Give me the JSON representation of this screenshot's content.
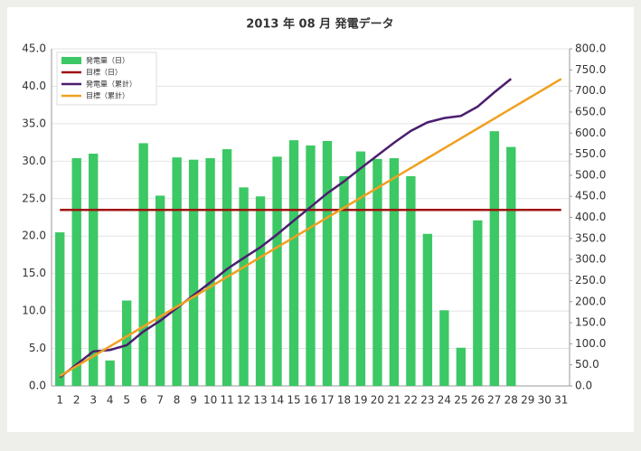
{
  "chart_data": {
    "type": "bar",
    "title": "2013 年 08 月 発電データ",
    "categories": [
      "1",
      "2",
      "3",
      "4",
      "5",
      "6",
      "7",
      "8",
      "9",
      "10",
      "11",
      "12",
      "13",
      "14",
      "15",
      "16",
      "17",
      "18",
      "19",
      "20",
      "21",
      "22",
      "23",
      "24",
      "25",
      "26",
      "27",
      "28",
      "29",
      "30",
      "31"
    ],
    "series": [
      {
        "name": "発電量（日）",
        "type": "bar",
        "color": "#3cc864",
        "values": [
          20.5,
          30.4,
          31.0,
          3.4,
          11.4,
          32.4,
          25.4,
          30.5,
          30.2,
          30.4,
          31.6,
          26.5,
          25.3,
          30.6,
          32.8,
          32.1,
          32.7,
          28.0,
          31.3,
          30.3,
          30.4,
          28.0,
          20.3,
          10.1,
          5.1,
          22.1,
          34.0,
          31.9,
          null,
          null,
          null
        ]
      },
      {
        "name": "目標（日）",
        "type": "line",
        "color": "#a01010",
        "values": [
          23.5,
          23.5,
          23.5,
          23.5,
          23.5,
          23.5,
          23.5,
          23.5,
          23.5,
          23.5,
          23.5,
          23.5,
          23.5,
          23.5,
          23.5,
          23.5,
          23.5,
          23.5,
          23.5,
          23.5,
          23.5,
          23.5,
          23.5,
          23.5,
          23.5,
          23.5,
          23.5,
          23.5,
          23.5,
          23.5,
          23.5
        ]
      },
      {
        "name": "発電量（累計）",
        "type": "line",
        "axis": "y2",
        "color": "#4b1e6e",
        "values": [
          20.5,
          50.9,
          81.9,
          85.3,
          96.7,
          129.1,
          154.5,
          185.0,
          215.2,
          245.6,
          277.2,
          303.7,
          329.0,
          359.6,
          392.4,
          424.5,
          457.2,
          485.2,
          516.5,
          546.8,
          577.2,
          605.2,
          625.5,
          635.6,
          640.7,
          662.8,
          696.8,
          728.7,
          null,
          null,
          null
        ]
      },
      {
        "name": "目標（累計）",
        "type": "line",
        "axis": "y2",
        "color": "#f0a020",
        "values": [
          23.5,
          47,
          70.5,
          94,
          117.5,
          141,
          164.5,
          188,
          211.5,
          235,
          258.5,
          282,
          305.5,
          329,
          352.5,
          376,
          399.5,
          423,
          446.5,
          470,
          493.5,
          517,
          540.5,
          564,
          587.5,
          611,
          634.5,
          658,
          681.5,
          705,
          728.5
        ]
      }
    ],
    "ylim": [
      0,
      45
    ],
    "yticks": [
      {
        "value": 0,
        "label": "0.0"
      },
      {
        "value": 5,
        "label": "5.0"
      },
      {
        "value": 10,
        "label": "10.0"
      },
      {
        "value": 15,
        "label": "15.0"
      },
      {
        "value": 20,
        "label": "20.0"
      },
      {
        "value": 25,
        "label": "25.0"
      },
      {
        "value": 30,
        "label": "30.0"
      },
      {
        "value": 35,
        "label": "35.0"
      },
      {
        "value": 40,
        "label": "40.0"
      },
      {
        "value": 45,
        "label": "45.0"
      }
    ],
    "y2lim": [
      0,
      800
    ],
    "y2ticks": [
      {
        "value": 0,
        "label": "0.0"
      },
      {
        "value": 50,
        "label": "50.0"
      },
      {
        "value": 100,
        "label": "100.0"
      },
      {
        "value": 150,
        "label": "150.0"
      },
      {
        "value": 200,
        "label": "200.0"
      },
      {
        "value": 250,
        "label": "250.0"
      },
      {
        "value": 300,
        "label": "300.0"
      },
      {
        "value": 350,
        "label": "350.0"
      },
      {
        "value": 400,
        "label": "400.0"
      },
      {
        "value": 450,
        "label": "450.0"
      },
      {
        "value": 500,
        "label": "500.0"
      },
      {
        "value": 550,
        "label": "550.0"
      },
      {
        "value": 600,
        "label": "600.0"
      },
      {
        "value": 650,
        "label": "650.0"
      },
      {
        "value": 700,
        "label": "700.0"
      },
      {
        "value": 750,
        "label": "750.0"
      },
      {
        "value": 800,
        "label": "800.0"
      }
    ],
    "grid": true,
    "legend": "top-left"
  }
}
